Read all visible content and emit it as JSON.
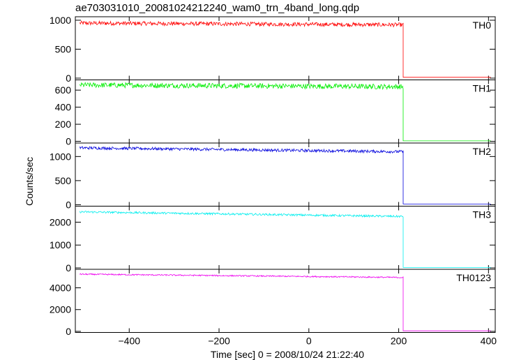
{
  "title": "ae703031010_20081024212240_wam0_trn_4band_long.qdp",
  "ylabel": "Counts/sec",
  "xlabel": "Time [sec] 0 = 2008/10/24 21:22:40",
  "chart_data": {
    "type": "line",
    "title": "ae703031010_20081024212240_wam0_trn_4band_long.qdp",
    "xlabel": "Time [sec] 0 = 2008/10/24 21:22:40",
    "ylabel": "Counts/sec",
    "xlim": [
      -520,
      415
    ],
    "x_ticks": [
      -400,
      -200,
      0,
      200,
      400
    ],
    "x_tick_labels": [
      "−400",
      "−200",
      "0",
      "200",
      "400"
    ],
    "drop_time": 210,
    "grid": false,
    "panels": [
      {
        "name": "TH0",
        "color": "#ff0000",
        "ylim": [
          -30,
          1060
        ],
        "y_ticks": [
          0,
          500,
          1000
        ],
        "y_tick_labels": [
          "0",
          "500",
          "1000"
        ],
        "x": [
          -510,
          210,
          210,
          405
        ],
        "y": [
          950,
          920,
          15,
          15
        ],
        "noise": 35
      },
      {
        "name": "TH1",
        "color": "#00ee00",
        "ylim": [
          -20,
          720
        ],
        "y_ticks": [
          0,
          200,
          400,
          600
        ],
        "y_tick_labels": [
          "0",
          "200",
          "400",
          "600"
        ],
        "x": [
          -510,
          210,
          210,
          405
        ],
        "y": [
          660,
          640,
          5,
          5
        ],
        "noise": 30
      },
      {
        "name": "TH2",
        "color": "#0000dd",
        "ylim": [
          -30,
          1280
        ],
        "y_ticks": [
          0,
          500,
          1000
        ],
        "y_tick_labels": [
          "0",
          "500",
          "1000"
        ],
        "x": [
          -510,
          210,
          210,
          405
        ],
        "y": [
          1180,
          1100,
          15,
          15
        ],
        "noise": 30
      },
      {
        "name": "TH3",
        "color": "#00eeee",
        "ylim": [
          -60,
          2700
        ],
        "y_ticks": [
          0,
          1000,
          2000
        ],
        "y_tick_labels": [
          "0",
          "1000",
          "2000"
        ],
        "x": [
          -510,
          210,
          210,
          405
        ],
        "y": [
          2450,
          2250,
          20,
          20
        ],
        "noise": 45
      },
      {
        "name": "TH0123",
        "color": "#ee00ee",
        "ylim": [
          -100,
          5700
        ],
        "y_ticks": [
          0,
          2000,
          4000
        ],
        "y_tick_labels": [
          "0",
          "2000",
          "4000"
        ],
        "x": [
          -510,
          210,
          210,
          405
        ],
        "y": [
          5250,
          4950,
          50,
          50
        ],
        "noise": 60
      }
    ]
  }
}
